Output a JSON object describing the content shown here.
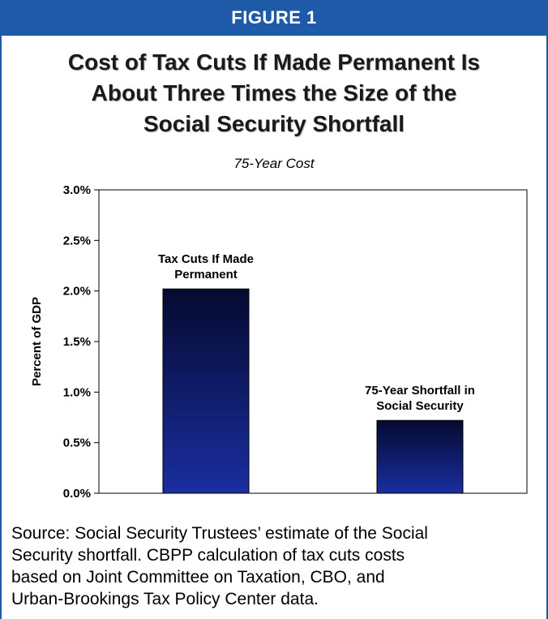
{
  "header": {
    "figure_label": "FIGURE 1"
  },
  "title_lines": [
    "Cost of Tax Cuts If Made Permanent Is",
    "About Three Times the Size of the",
    "Social Security Shortfall"
  ],
  "chart_data": {
    "type": "bar",
    "title": "",
    "subtitle": "75-Year Cost",
    "xlabel": "",
    "ylabel": "Percent of GDP",
    "ylim": [
      0,
      3.0
    ],
    "yticks": [
      "0.0%",
      "0.5%",
      "1.0%",
      "1.5%",
      "2.0%",
      "2.5%",
      "3.0%"
    ],
    "ytick_values": [
      0,
      0.5,
      1.0,
      1.5,
      2.0,
      2.5,
      3.0
    ],
    "categories": [
      [
        "Tax Cuts If Made",
        "Permanent"
      ],
      [
        "75-Year Shortfall in",
        "Social Security"
      ]
    ],
    "values": [
      2.02,
      0.72
    ],
    "grid": false,
    "bar_color_top": "#050a30",
    "bar_color_bottom": "#1a2ea0"
  },
  "source_lines": [
    "Source: Social Security Trustees’ estimate of the Social",
    "Security shortfall.  CBPP calculation of tax cuts costs",
    "based on Joint Committee on Taxation, CBO, and",
    "Urban-Brookings Tax Policy Center data."
  ],
  "colors": {
    "accent": "#1f5aa8"
  }
}
